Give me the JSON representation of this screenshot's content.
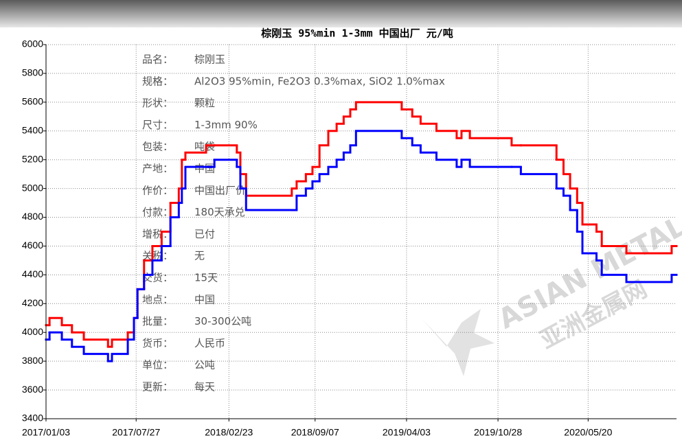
{
  "chart_data": {
    "type": "line",
    "title": "棕刚玉 95%min 1-3mm 中国出厂 元/吨",
    "x": [
      "2017/01/03",
      "2017/01/11",
      "2017/02/08",
      "2017/03/03",
      "2017/03/30",
      "2017/05/24",
      "2017/06/02",
      "2017/07/08",
      "2017/07/22",
      "2017/07/30",
      "2017/08/14",
      "2017/09/02",
      "2017/09/23",
      "2017/10/13",
      "2017/11/01",
      "2017/11/08",
      "2017/11/16",
      "2018/01/02",
      "2018/01/21",
      "2018/03/13",
      "2018/03/21",
      "2018/04/03",
      "2018/07/16",
      "2018/07/27",
      "2018/08/17",
      "2018/09/01",
      "2018/09/17",
      "2018/10/07",
      "2018/10/26",
      "2018/11/11",
      "2018/11/26",
      "2018/12/09",
      "2019/03/23",
      "2019/04/16",
      "2019/05/05",
      "2019/06/10",
      "2019/07/26",
      "2019/08/06",
      "2019/08/25",
      "2019/11/28",
      "2019/12/19",
      "2020/03/09",
      "2020/03/25",
      "2020/04/09",
      "2020/04/25",
      "2020/05/07",
      "2020/06/08",
      "2020/06/20",
      "2020/08/15",
      "2020/11/26"
    ],
    "series": [
      {
        "name": "红",
        "color": "#ff0000",
        "values": [
          4050,
          4100,
          4050,
          4000,
          3950,
          3900,
          3950,
          4000,
          4100,
          4300,
          4500,
          4600,
          4700,
          4900,
          5000,
          5200,
          5250,
          5300,
          5300,
          5250,
          5100,
          4950,
          5000,
          5050,
          5100,
          5150,
          5300,
          5400,
          5450,
          5500,
          5550,
          5600,
          5550,
          5500,
          5450,
          5400,
          5350,
          5400,
          5350,
          5300,
          5300,
          5200,
          5100,
          5000,
          4900,
          4750,
          4700,
          4600,
          4550,
          4600
        ]
      },
      {
        "name": "蓝",
        "color": "#0000ff",
        "values": [
          3950,
          4000,
          3950,
          3900,
          3850,
          3800,
          3850,
          3950,
          4100,
          4300,
          4400,
          4500,
          4600,
          4800,
          4900,
          5000,
          5150,
          5150,
          5200,
          5150,
          5000,
          4850,
          4850,
          4950,
          5000,
          5050,
          5100,
          5150,
          5200,
          5250,
          5300,
          5400,
          5350,
          5300,
          5250,
          5200,
          5150,
          5200,
          5150,
          5150,
          5100,
          5000,
          4950,
          4850,
          4700,
          4550,
          4500,
          4400,
          4350,
          4400
        ]
      }
    ],
    "xlim": [
      "2017/01/03",
      "2020/12/07"
    ],
    "xticks": [
      "2017/01/03",
      "2017/07/27",
      "2018/02/23",
      "2018/09/07",
      "2019/04/03",
      "2019/10/28",
      "2020/05/20"
    ],
    "ylim": [
      3400,
      6000
    ],
    "yticks": [
      3400,
      3600,
      3800,
      4000,
      4200,
      4400,
      4600,
      4800,
      5000,
      5200,
      5400,
      5600,
      5800,
      6000
    ],
    "grid": true,
    "info": [
      {
        "label": "品名：",
        "value": "棕刚玉"
      },
      {
        "label": "规格：",
        "value": "Al2O3 95%min, Fe2O3 0.3%max, SiO2 1.0%max"
      },
      {
        "label": "形状：",
        "value": "颗粒"
      },
      {
        "label": "尺寸：",
        "value": "1-3mm 90%"
      },
      {
        "label": "包装：",
        "value": "吨袋"
      },
      {
        "label": "产地：",
        "value": "中国"
      },
      {
        "label": "作价：",
        "value": "中国出厂价"
      },
      {
        "label": "付款：",
        "value": "180天承兑"
      },
      {
        "label": "增税：",
        "value": "已付"
      },
      {
        "label": "关税：",
        "value": "无"
      },
      {
        "label": "交货：",
        "value": "15天"
      },
      {
        "label": "地点：",
        "value": "中国"
      },
      {
        "label": "批量：",
        "value": "30-300公吨"
      },
      {
        "label": "货币：",
        "value": "人民币"
      },
      {
        "label": "单位：",
        "value": "公吨"
      },
      {
        "label": "更新：",
        "value": "每天"
      }
    ],
    "watermark": [
      "ASIAN METAL",
      "亚洲金属网"
    ]
  }
}
